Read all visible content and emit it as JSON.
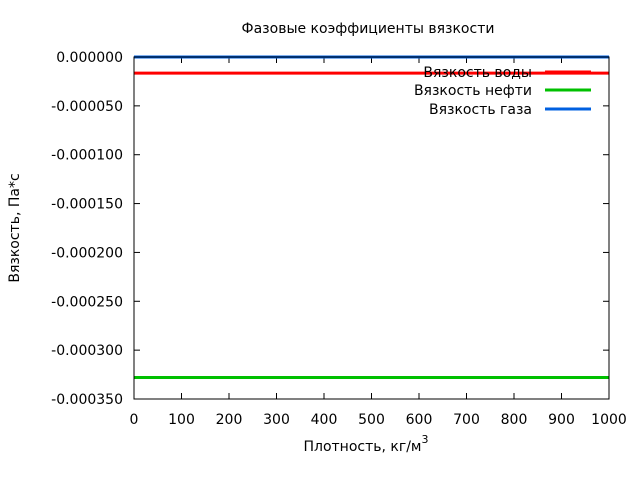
{
  "chart_data": {
    "type": "line",
    "title": "Фазовые коэффициенты вязкости",
    "xlabel": "Плотность, кг/м",
    "xlabel_superscript": "3",
    "ylabel": "Вязкость, Па*с",
    "xlim": [
      0,
      1000
    ],
    "ylim": [
      -0.00035,
      0.0
    ],
    "xticks": [
      0,
      100,
      200,
      300,
      400,
      500,
      600,
      700,
      800,
      900,
      1000
    ],
    "xtick_labels": [
      "0",
      "100",
      "200",
      "300",
      "400",
      "500",
      "600",
      "700",
      "800",
      "900",
      "1000"
    ],
    "yticks": [
      0.0,
      -5e-05,
      -0.0001,
      -0.00015,
      -0.0002,
      -0.00025,
      -0.0003,
      -0.00035
    ],
    "ytick_labels": [
      "0.000000",
      "-0.000050",
      "-0.000100",
      "-0.000150",
      "-0.000200",
      "-0.000250",
      "-0.000300",
      "-0.000350"
    ],
    "grid": false,
    "legend_position": "top-right",
    "series": [
      {
        "name": "Вязкость воды",
        "color": "#ff0000",
        "x": [
          0,
          1000
        ],
        "y": [
          -1.65e-05,
          -1.65e-05
        ]
      },
      {
        "name": "Вязкость нефти",
        "color": "#00c000",
        "x": [
          0,
          1000
        ],
        "y": [
          -0.000328,
          -0.000328
        ]
      },
      {
        "name": "Вязкость газа",
        "color": "#0060e0",
        "x": [
          0,
          1000
        ],
        "y": [
          0.0,
          0.0
        ]
      }
    ]
  }
}
